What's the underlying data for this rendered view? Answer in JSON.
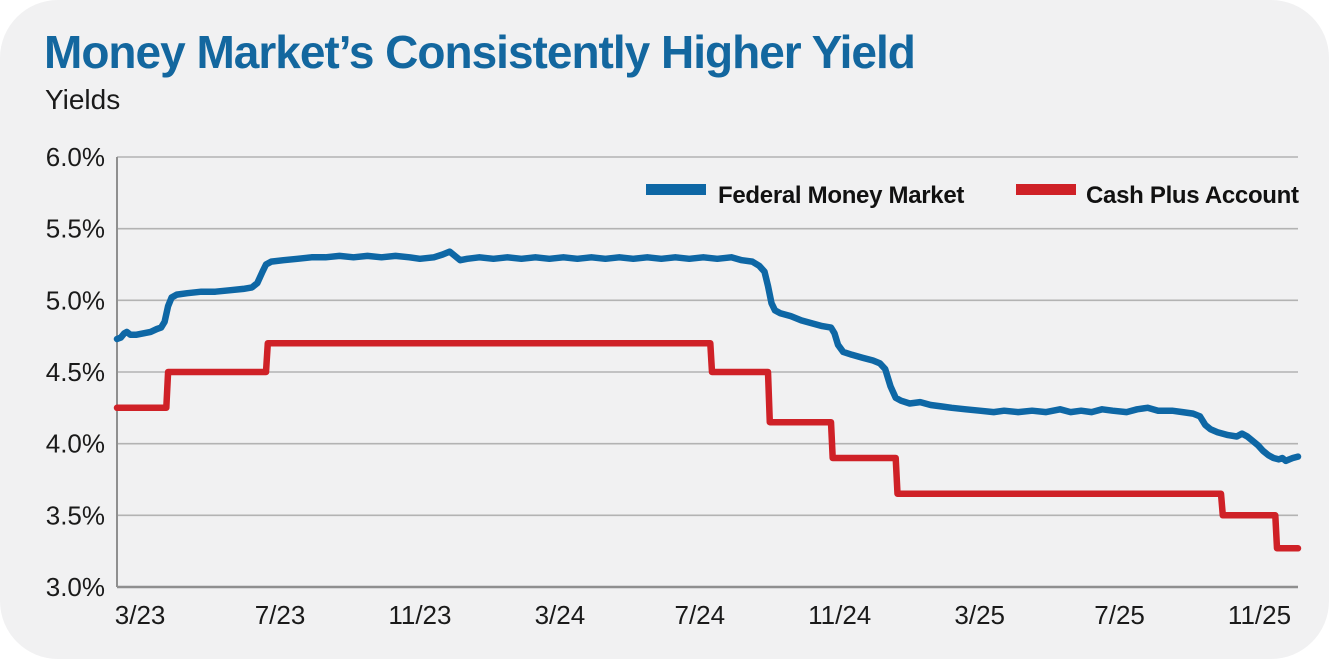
{
  "header": {
    "title": "Money Market’s Consistently Higher Yield",
    "subtitle": "Yields"
  },
  "legend": {
    "position": "top-right-inside-plot",
    "items": [
      {
        "label": "Federal Money Market",
        "color": "#0e67a5"
      },
      {
        "label": "Cash Plus Account",
        "color": "#cf2127"
      }
    ]
  },
  "colors": {
    "title": "#13679f",
    "text": "#1a1a1a",
    "card_background": "#f1f2f2",
    "page_background": "#ffffff",
    "gridline": "#b3b3b3",
    "axis": "#8f8f8f"
  },
  "chart_data": {
    "type": "line",
    "title": "Money Market’s Consistently Higher Yield",
    "ylabel": "Yields",
    "x_unit": "months since 2023-03 (first tick); ticks every 4 months",
    "xlim": [
      -0.66,
      33.1
    ],
    "ylim": [
      3.0,
      6.0
    ],
    "grid": "horizontal-only",
    "legend_position": "top-right",
    "yticks": {
      "values": [
        3.0,
        3.5,
        4.0,
        4.5,
        5.0,
        5.5,
        6.0
      ],
      "labels": [
        "3.0%",
        "3.5%",
        "4.0%",
        "4.5%",
        "5.0%",
        "5.5%",
        "6.0%"
      ]
    },
    "xticks": {
      "values": [
        0,
        4,
        8,
        12,
        16,
        20,
        24,
        28,
        32
      ],
      "labels": [
        "3/23",
        "7/23",
        "11/23",
        "3/24",
        "7/24",
        "11/24",
        "3/25",
        "7/25",
        "11/25"
      ]
    },
    "series": [
      {
        "name": "Federal Money Market",
        "color": "#0e67a5",
        "points": [
          [
            -0.66,
            4.73
          ],
          [
            -0.55,
            4.74
          ],
          [
            -0.45,
            4.77
          ],
          [
            -0.38,
            4.78
          ],
          [
            -0.28,
            4.76
          ],
          [
            -0.1,
            4.76
          ],
          [
            0.1,
            4.77
          ],
          [
            0.3,
            4.78
          ],
          [
            0.48,
            4.8
          ],
          [
            0.6,
            4.81
          ],
          [
            0.7,
            4.85
          ],
          [
            0.8,
            4.96
          ],
          [
            0.9,
            5.02
          ],
          [
            1.05,
            5.04
          ],
          [
            1.35,
            5.05
          ],
          [
            1.75,
            5.06
          ],
          [
            2.15,
            5.06
          ],
          [
            2.55,
            5.07
          ],
          [
            2.95,
            5.08
          ],
          [
            3.2,
            5.09
          ],
          [
            3.35,
            5.12
          ],
          [
            3.5,
            5.2
          ],
          [
            3.6,
            5.25
          ],
          [
            3.75,
            5.27
          ],
          [
            4.1,
            5.28
          ],
          [
            4.5,
            5.29
          ],
          [
            4.9,
            5.3
          ],
          [
            5.3,
            5.3
          ],
          [
            5.7,
            5.31
          ],
          [
            6.1,
            5.3
          ],
          [
            6.5,
            5.31
          ],
          [
            6.9,
            5.3
          ],
          [
            7.3,
            5.31
          ],
          [
            7.7,
            5.3
          ],
          [
            8.0,
            5.29
          ],
          [
            8.4,
            5.3
          ],
          [
            8.65,
            5.32
          ],
          [
            8.85,
            5.34
          ],
          [
            9.0,
            5.31
          ],
          [
            9.15,
            5.28
          ],
          [
            9.35,
            5.29
          ],
          [
            9.7,
            5.3
          ],
          [
            10.1,
            5.29
          ],
          [
            10.5,
            5.3
          ],
          [
            10.9,
            5.29
          ],
          [
            11.3,
            5.3
          ],
          [
            11.7,
            5.29
          ],
          [
            12.1,
            5.3
          ],
          [
            12.5,
            5.29
          ],
          [
            12.9,
            5.3
          ],
          [
            13.3,
            5.29
          ],
          [
            13.7,
            5.3
          ],
          [
            14.1,
            5.29
          ],
          [
            14.5,
            5.3
          ],
          [
            14.9,
            5.29
          ],
          [
            15.3,
            5.3
          ],
          [
            15.7,
            5.29
          ],
          [
            16.1,
            5.3
          ],
          [
            16.5,
            5.29
          ],
          [
            16.9,
            5.3
          ],
          [
            17.2,
            5.28
          ],
          [
            17.5,
            5.27
          ],
          [
            17.7,
            5.24
          ],
          [
            17.85,
            5.2
          ],
          [
            17.95,
            5.1
          ],
          [
            18.05,
            4.98
          ],
          [
            18.15,
            4.93
          ],
          [
            18.3,
            4.91
          ],
          [
            18.6,
            4.89
          ],
          [
            18.9,
            4.86
          ],
          [
            19.2,
            4.84
          ],
          [
            19.5,
            4.82
          ],
          [
            19.75,
            4.81
          ],
          [
            19.85,
            4.77
          ],
          [
            19.95,
            4.69
          ],
          [
            20.1,
            4.64
          ],
          [
            20.35,
            4.62
          ],
          [
            20.65,
            4.6
          ],
          [
            20.95,
            4.58
          ],
          [
            21.15,
            4.56
          ],
          [
            21.3,
            4.52
          ],
          [
            21.45,
            4.4
          ],
          [
            21.6,
            4.32
          ],
          [
            21.75,
            4.3
          ],
          [
            22.0,
            4.28
          ],
          [
            22.3,
            4.29
          ],
          [
            22.6,
            4.27
          ],
          [
            22.9,
            4.26
          ],
          [
            23.2,
            4.25
          ],
          [
            23.6,
            4.24
          ],
          [
            24.0,
            4.23
          ],
          [
            24.4,
            4.22
          ],
          [
            24.7,
            4.23
          ],
          [
            25.1,
            4.22
          ],
          [
            25.5,
            4.23
          ],
          [
            25.9,
            4.22
          ],
          [
            26.3,
            4.24
          ],
          [
            26.6,
            4.22
          ],
          [
            26.9,
            4.23
          ],
          [
            27.2,
            4.22
          ],
          [
            27.5,
            4.24
          ],
          [
            27.8,
            4.23
          ],
          [
            28.2,
            4.22
          ],
          [
            28.5,
            4.24
          ],
          [
            28.8,
            4.25
          ],
          [
            29.1,
            4.23
          ],
          [
            29.5,
            4.23
          ],
          [
            29.8,
            4.22
          ],
          [
            30.1,
            4.21
          ],
          [
            30.3,
            4.19
          ],
          [
            30.45,
            4.13
          ],
          [
            30.6,
            4.1
          ],
          [
            30.8,
            4.08
          ],
          [
            31.1,
            4.06
          ],
          [
            31.35,
            4.05
          ],
          [
            31.5,
            4.07
          ],
          [
            31.65,
            4.05
          ],
          [
            31.8,
            4.02
          ],
          [
            31.95,
            3.99
          ],
          [
            32.1,
            3.95
          ],
          [
            32.25,
            3.92
          ],
          [
            32.4,
            3.9
          ],
          [
            32.55,
            3.89
          ],
          [
            32.65,
            3.9
          ],
          [
            32.75,
            3.88
          ],
          [
            32.85,
            3.89
          ],
          [
            32.95,
            3.9
          ],
          [
            33.1,
            3.91
          ]
        ]
      },
      {
        "name": "Cash Plus Account",
        "color": "#cf2127",
        "points": [
          [
            -0.66,
            4.25
          ],
          [
            0.75,
            4.25
          ],
          [
            0.8,
            4.5
          ],
          [
            3.6,
            4.5
          ],
          [
            3.65,
            4.7
          ],
          [
            16.3,
            4.7
          ],
          [
            16.35,
            4.5
          ],
          [
            17.95,
            4.5
          ],
          [
            18.0,
            4.15
          ],
          [
            19.75,
            4.15
          ],
          [
            19.8,
            3.9
          ],
          [
            21.6,
            3.9
          ],
          [
            21.65,
            3.65
          ],
          [
            30.9,
            3.65
          ],
          [
            30.95,
            3.5
          ],
          [
            32.45,
            3.5
          ],
          [
            32.5,
            3.27
          ],
          [
            33.1,
            3.27
          ]
        ]
      }
    ]
  }
}
